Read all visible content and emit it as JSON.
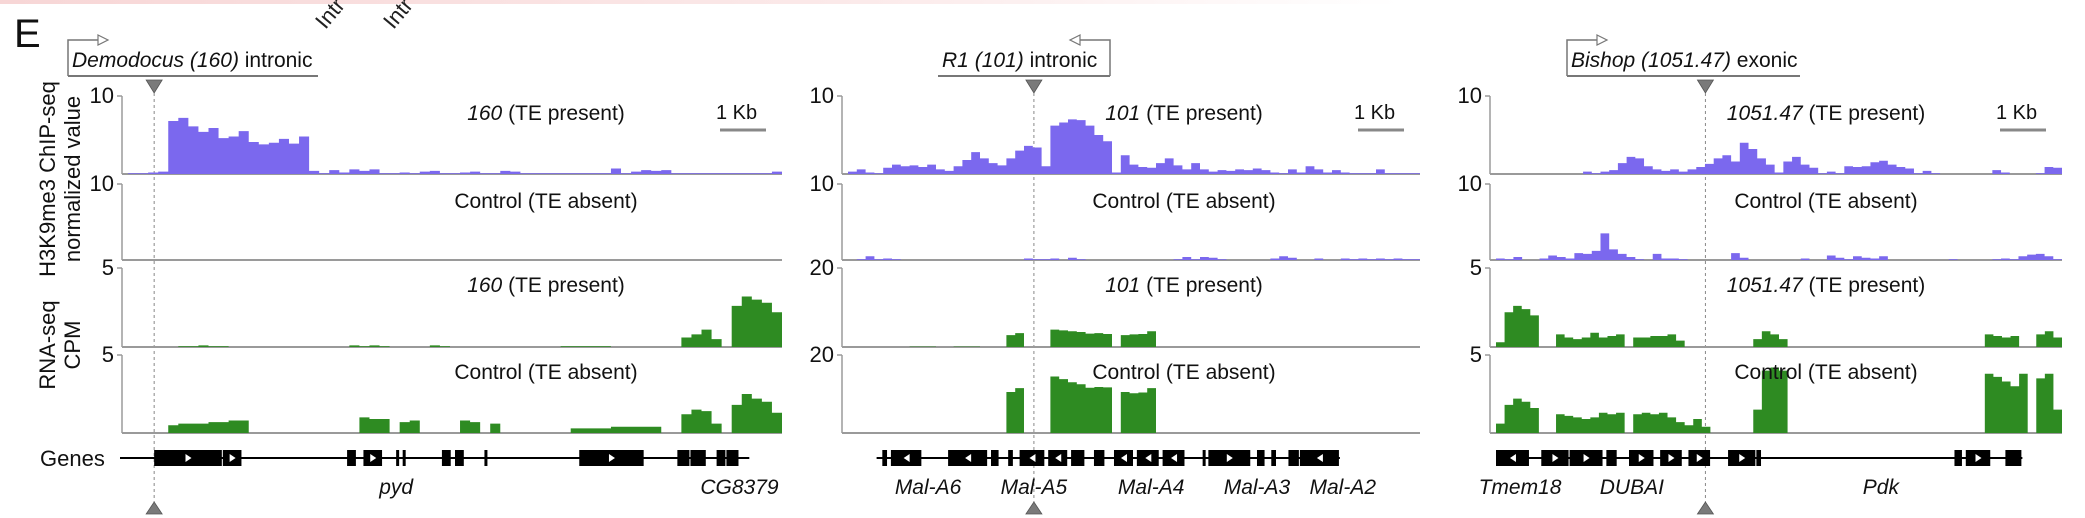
{
  "figure": {
    "panel_letter": "E",
    "top_fragments": [
      "Intr",
      "Intr"
    ],
    "y_labels": {
      "chip_line1": "H3K9me3 ChIP-seq",
      "chip_line2": "normalized value",
      "rna_line1": "RNA-seq",
      "rna_line2": "CPM"
    },
    "genes_label": "Genes",
    "scale_bar_label": "1 Kb",
    "colors": {
      "chip": "#7b68ee",
      "rna": "#2e8b22",
      "gene": "#000000",
      "axis": "#9a9a9a",
      "marker": "#7a7a7a"
    }
  },
  "chart_data": [
    {
      "type": "area",
      "panel": "left",
      "te_name": "Demodocus",
      "te_id": "160",
      "te_context": "intronic",
      "te_strand": "+",
      "tracks": [
        {
          "assay": "H3K9me3 ChIP-seq",
          "label_id": "160",
          "label_suffix": "(TE present)",
          "ymax": 10,
          "profile": [
            0.1,
            0.1,
            0.2,
            0.3,
            6.8,
            7.2,
            6.1,
            5.4,
            5.9,
            4.6,
            4.8,
            5.5,
            4.1,
            3.8,
            4.0,
            4.5,
            3.9,
            4.8,
            0.4,
            0.1,
            0.5,
            0.2,
            0.6,
            0.4,
            0.6,
            0.1,
            0.1,
            0.2,
            0.1,
            0.3,
            0.4,
            0.1,
            0.1,
            0.2,
            0.3,
            0.1,
            0.1,
            0.4,
            0.3,
            0.1,
            0.1,
            0.1,
            0.1,
            0.1,
            0.1,
            0.1,
            0.1,
            0.1,
            0.7,
            0.1,
            0.3,
            0.5,
            0.4,
            0.5,
            0.1,
            0.1,
            0.1,
            0.1,
            0.1,
            0.1,
            0.1,
            0.1,
            0.1,
            0.1,
            0.3
          ]
        },
        {
          "assay": "H3K9me3 ChIP-seq",
          "label_id": "",
          "label_suffix": "Control (TE absent)",
          "ymax": 10,
          "profile": [
            0,
            0,
            0,
            0,
            0,
            0,
            0,
            0,
            0,
            0,
            0,
            0,
            0,
            0,
            0,
            0,
            0,
            0,
            0,
            0,
            0,
            0,
            0,
            0,
            0,
            0,
            0,
            0,
            0,
            0,
            0,
            0,
            0,
            0,
            0,
            0,
            0,
            0,
            0,
            0,
            0,
            0,
            0,
            0,
            0,
            0,
            0,
            0,
            0,
            0,
            0,
            0,
            0,
            0,
            0,
            0,
            0,
            0,
            0,
            0,
            0,
            0,
            0,
            0,
            0
          ]
        },
        {
          "assay": "RNA-seq",
          "label_id": "160",
          "label_suffix": "(TE present)",
          "ymax": 5,
          "profile": [
            0,
            0,
            0,
            0,
            0,
            0.05,
            0.05,
            0.1,
            0.05,
            0.05,
            0,
            0,
            0,
            0,
            0,
            0,
            0,
            0,
            0,
            0,
            0,
            0,
            0.1,
            0.05,
            0.1,
            0.05,
            0,
            0,
            0,
            0,
            0.1,
            0.05,
            0,
            0,
            0,
            0,
            0,
            0,
            0,
            0,
            0,
            0,
            0,
            0.05,
            0.05,
            0.05,
            0.05,
            0.05,
            0,
            0,
            0,
            0,
            0,
            0,
            0,
            0.6,
            0.8,
            1.1,
            0.5,
            0,
            2.6,
            3.2,
            3.0,
            2.8,
            2.2
          ]
        },
        {
          "assay": "RNA-seq",
          "label_id": "",
          "label_suffix": "Control (TE absent)",
          "ymax": 5,
          "profile": [
            0,
            0,
            0,
            0,
            0.5,
            0.6,
            0.6,
            0.6,
            0.7,
            0.7,
            0.8,
            0.8,
            0,
            0,
            0,
            0,
            0,
            0,
            0,
            0,
            0,
            0,
            0,
            1.0,
            0.9,
            0.9,
            0,
            0.7,
            0.8,
            0,
            0,
            0,
            0,
            0.8,
            0.7,
            0,
            0.6,
            0,
            0,
            0,
            0,
            0,
            0,
            0,
            0.3,
            0.3,
            0.3,
            0.3,
            0.4,
            0.4,
            0.4,
            0.4,
            0.4,
            0,
            0,
            1.2,
            1.5,
            1.4,
            0.6,
            0,
            1.8,
            2.5,
            2.2,
            2.0,
            1.3
          ]
        }
      ],
      "genes": [
        {
          "name": "pyd",
          "strand": "+"
        },
        {
          "name": "CG8379",
          "strand": "-"
        }
      ],
      "exons": [
        [
          0.04,
          0.145
        ],
        [
          0.145,
          0.175
        ],
        [
          0.335,
          0.35
        ],
        [
          0.36,
          0.39
        ],
        [
          0.41,
          0.415
        ],
        [
          0.42,
          0.425
        ],
        [
          0.48,
          0.495
        ],
        [
          0.5,
          0.515
        ],
        [
          0.545,
          0.55
        ],
        [
          0.69,
          0.79
        ],
        [
          0.84,
          0.86
        ],
        [
          0.86,
          0.885
        ],
        [
          0.9,
          0.915
        ],
        [
          0.915,
          0.935
        ]
      ],
      "gene_labels": [
        {
          "name": "pyd",
          "pos": 0.41
        },
        {
          "name": "CG8379",
          "pos": 0.935
        }
      ],
      "te_position": 0.04
    },
    {
      "type": "area",
      "panel": "middle",
      "te_name": "R1",
      "te_id": "101",
      "te_context": "intronic",
      "te_strand": "-",
      "tracks": [
        {
          "assay": "H3K9me3 ChIP-seq",
          "label_id": "101",
          "label_suffix": "(TE present)",
          "ymax": 10,
          "profile": [
            0.3,
            0.6,
            0.2,
            0.1,
            0.8,
            1.2,
            1.0,
            1.1,
            0.9,
            1.2,
            0.6,
            0.4,
            1.0,
            1.8,
            2.8,
            2.0,
            1.4,
            1.1,
            2.0,
            3.0,
            3.6,
            3.4,
            1.0,
            6.2,
            6.6,
            7.0,
            6.9,
            6.2,
            5.0,
            4.2,
            0.2,
            2.4,
            1.2,
            0.9,
            0.8,
            1.4,
            2.0,
            1.1,
            0.6,
            1.4,
            0.6,
            0.3,
            0.5,
            0.4,
            0.6,
            0.5,
            0.7,
            0.5,
            0.2,
            0.1,
            0.6,
            0.2,
            1.0,
            0.6,
            0.2,
            0.5,
            0.2,
            0.1,
            0.1,
            0.1,
            0.6,
            0.1,
            0.1,
            0.1,
            0.1
          ]
        },
        {
          "assay": "H3K9me3 ChIP-seq",
          "label_id": "",
          "label_suffix": "Control (TE absent)",
          "ymax": 10,
          "profile": [
            0,
            0.1,
            0.5,
            0.1,
            0.2,
            0.1,
            0,
            0,
            0,
            0,
            0,
            0,
            0,
            0,
            0,
            0,
            0,
            0,
            0,
            0,
            0.2,
            0.1,
            0.1,
            0.2,
            0,
            0.3,
            0.1,
            0,
            0,
            0,
            0,
            0,
            0,
            0,
            0,
            0,
            0,
            0.1,
            0.4,
            0.1,
            0.4,
            0.3,
            0.1,
            0,
            0,
            0,
            0,
            0,
            0.2,
            0.5,
            0.3,
            0,
            0,
            0.2,
            0,
            0,
            0.2,
            0.1,
            0.2,
            0.1,
            0.2,
            0.1,
            0.2,
            0.1,
            0.1
          ]
        },
        {
          "assay": "RNA-seq",
          "label_id": "101",
          "label_suffix": "(TE present)",
          "ymax": 20,
          "profile": [
            0,
            0,
            0,
            0,
            0,
            0,
            0,
            0.1,
            0.1,
            0.1,
            0,
            0,
            0.1,
            0.1,
            0.1,
            0,
            0,
            0,
            3.0,
            3.5,
            0,
            0,
            0,
            4.4,
            4.2,
            4.0,
            3.8,
            3.4,
            3.5,
            3.3,
            0,
            3.0,
            3.2,
            3.3,
            4.0,
            0,
            0,
            0,
            0,
            0,
            0,
            0,
            0,
            0,
            0,
            0,
            0,
            0,
            0,
            0,
            0,
            0,
            0,
            0,
            0,
            0,
            0,
            0,
            0,
            0,
            0,
            0,
            0,
            0,
            0
          ]
        },
        {
          "assay": "RNA-seq",
          "label_id": "",
          "label_suffix": "Control (TE absent)",
          "ymax": 20,
          "profile": [
            0,
            0,
            0,
            0,
            0,
            0,
            0,
            0,
            0,
            0,
            0,
            0,
            0,
            0,
            0,
            0,
            0,
            0,
            10.5,
            11.5,
            0,
            0,
            0,
            14.5,
            13.8,
            13.0,
            12.5,
            11.6,
            11.8,
            11.7,
            0,
            10.5,
            10.2,
            10.4,
            11.5,
            0,
            0,
            0,
            0,
            0,
            0,
            0,
            0,
            0,
            0,
            0,
            0,
            0,
            0,
            0,
            0,
            0,
            0,
            0,
            0,
            0,
            0,
            0,
            0,
            0,
            0,
            0,
            0,
            0,
            0
          ]
        }
      ],
      "genes": [
        {
          "name": "Mal-A6",
          "strand": "-"
        },
        {
          "name": "Mal-A5",
          "strand": "-"
        },
        {
          "name": "Mal-A4",
          "strand": "-"
        },
        {
          "name": "Mal-A3",
          "strand": "+"
        },
        {
          "name": "Mal-A2",
          "strand": "-"
        }
      ],
      "exons": [
        [
          0.06,
          0.07
        ],
        [
          0.075,
          0.13
        ],
        [
          0.175,
          0.245
        ],
        [
          0.25,
          0.265
        ],
        [
          0.28,
          0.29
        ],
        [
          0.3,
          0.345
        ],
        [
          0.35,
          0.385
        ],
        [
          0.39,
          0.415
        ],
        [
          0.43,
          0.45
        ],
        [
          0.465,
          0.5
        ],
        [
          0.505,
          0.545
        ],
        [
          0.55,
          0.59
        ],
        [
          0.62,
          0.625
        ],
        [
          0.63,
          0.705
        ],
        [
          0.715,
          0.73
        ],
        [
          0.74,
          0.75
        ],
        [
          0.77,
          0.79
        ],
        [
          0.79,
          0.86
        ]
      ],
      "gene_labels": [
        {
          "name": "Mal-A6",
          "pos": 0.14
        },
        {
          "name": "Mal-A5",
          "pos": 0.325
        },
        {
          "name": "Mal-A4",
          "pos": 0.53
        },
        {
          "name": "Mal-A3",
          "pos": 0.715
        },
        {
          "name": "Mal-A2",
          "pos": 0.865
        }
      ],
      "te_position": 0.325
    },
    {
      "type": "area",
      "panel": "right",
      "te_name": "Bishop",
      "te_id": "1051.47",
      "te_context": "exonic",
      "te_strand": "+",
      "tracks": [
        {
          "assay": "H3K9me3 ChIP-seq",
          "label_id": "1051.47",
          "label_suffix": "(TE present)",
          "ymax": 10,
          "profile": [
            0,
            0,
            0,
            0,
            0,
            0,
            0,
            0,
            0,
            0,
            0.3,
            0.1,
            0.3,
            0.5,
            1.4,
            2.2,
            2.0,
            1.0,
            0.6,
            0.4,
            0.6,
            0.3,
            0.6,
            0.9,
            1.3,
            2.0,
            2.4,
            1.6,
            4.0,
            3.2,
            2.0,
            1.2,
            0.2,
            1.6,
            2.2,
            1.2,
            0.8,
            0.1,
            0.3,
            0.1,
            1.0,
            0.9,
            1.0,
            1.5,
            1.7,
            1.2,
            0.9,
            0.7,
            0.1,
            0.4,
            0.1,
            0,
            0,
            0,
            0,
            0,
            0,
            0.5,
            0.2,
            0,
            0,
            0,
            0.1,
            0.9,
            0.8
          ]
        },
        {
          "assay": "H3K9me3 ChIP-seq",
          "label_id": "",
          "label_suffix": "Control (TE absent)",
          "ymax": 10,
          "profile": [
            0.2,
            0.1,
            0.4,
            0,
            0,
            0.2,
            0.6,
            0.4,
            0.2,
            0.9,
            0.8,
            1.2,
            3.5,
            1.4,
            0.8,
            0.4,
            0.1,
            0,
            0.8,
            0.2,
            0.2,
            0.1,
            0,
            0,
            0,
            0,
            0,
            0.9,
            0.3,
            0,
            0,
            0,
            0,
            0,
            0,
            0.2,
            0,
            0,
            0.6,
            0.3,
            0.1,
            0.5,
            0.3,
            0.2,
            0.5,
            0,
            0,
            0,
            0,
            0,
            0,
            0,
            0.1,
            0,
            0,
            0,
            0,
            0.1,
            0.2,
            0.1,
            0.5,
            0.7,
            0.8,
            0.5,
            0.1
          ]
        },
        {
          "assay": "RNA-seq",
          "label_id": "1051.47",
          "label_suffix": "(TE present)",
          "ymax": 5,
          "profile": [
            0.3,
            2.2,
            2.6,
            2.4,
            2.0,
            0,
            0,
            0.8,
            0.6,
            0.5,
            0.6,
            0.9,
            0.6,
            0.7,
            0.8,
            0,
            0.6,
            0.6,
            0.7,
            0.7,
            0.8,
            0.4,
            0,
            0,
            0,
            0,
            0,
            0,
            0,
            0,
            0.5,
            1.0,
            0.8,
            0.5,
            0,
            0,
            0,
            0,
            0,
            0,
            0,
            0,
            0,
            0,
            0,
            0,
            0,
            0,
            0,
            0,
            0,
            0,
            0,
            0,
            0,
            0,
            0,
            0.8,
            0.7,
            0.6,
            0.7,
            0,
            0,
            0.8,
            1.0,
            0.6
          ]
        },
        {
          "assay": "RNA-seq",
          "label_id": "",
          "label_suffix": "Control (TE absent)",
          "ymax": 5,
          "profile": [
            0.6,
            1.8,
            2.2,
            2.0,
            1.6,
            0,
            0,
            1.2,
            1.1,
            1.0,
            0.9,
            1.0,
            1.3,
            1.2,
            1.3,
            0,
            1.2,
            1.3,
            1.2,
            1.3,
            1.0,
            0.7,
            0.5,
            0.9,
            0.4,
            0,
            0,
            0,
            0,
            0,
            1.5,
            4.0,
            4.2,
            4.0,
            0,
            0,
            0,
            0,
            0,
            0,
            0,
            0,
            0,
            0,
            0,
            0,
            0,
            0,
            0,
            0,
            0,
            0,
            0,
            0,
            0,
            0,
            0,
            3.8,
            3.6,
            3.3,
            3.0,
            3.8,
            0,
            3.5,
            3.8,
            1.5
          ]
        }
      ],
      "genes": [
        {
          "name": "Tmem18",
          "strand": "-"
        },
        {
          "name": "DUBAI",
          "strand": "+"
        },
        {
          "name": "Pdk",
          "strand": "+"
        }
      ],
      "exons": [
        [
          0.0,
          0.06
        ],
        [
          0.08,
          0.13
        ],
        [
          0.13,
          0.19
        ],
        [
          0.195,
          0.215
        ],
        [
          0.235,
          0.28
        ],
        [
          0.29,
          0.33
        ],
        [
          0.34,
          0.38
        ],
        [
          0.41,
          0.46
        ],
        [
          0.46,
          0.47
        ],
        [
          0.81,
          0.825
        ],
        [
          0.83,
          0.875
        ],
        [
          0.9,
          0.93
        ]
      ],
      "gene_labels": [
        {
          "name": "Tmem18",
          "pos": 0.02
        },
        {
          "name": "DUBAI",
          "pos": 0.24
        },
        {
          "name": "Pdk",
          "pos": 0.68
        }
      ],
      "te_position": 0.37
    }
  ]
}
